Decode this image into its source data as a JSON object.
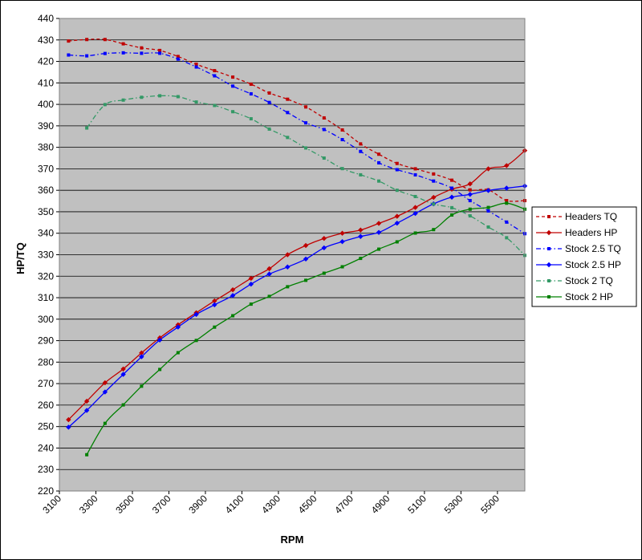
{
  "chart_data": {
    "type": "line",
    "xlabel": "RPM",
    "ylabel": "HP/TQ",
    "xlim": [
      3100,
      5650
    ],
    "ylim": [
      220,
      440
    ],
    "x_ticks": [
      3100,
      3300,
      3500,
      3700,
      3900,
      4100,
      4300,
      4500,
      4700,
      4900,
      5100,
      5300,
      5500
    ],
    "y_ticks": [
      220,
      230,
      240,
      250,
      260,
      270,
      280,
      290,
      300,
      310,
      320,
      330,
      340,
      350,
      360,
      370,
      380,
      390,
      400,
      410,
      420,
      430,
      440
    ],
    "grid": "horizontal",
    "plot_background": "#c0c0c0",
    "legend_position": "right",
    "series": [
      {
        "name": "Headers TQ",
        "color": "#c00000",
        "dash": "dashed",
        "marker": "square",
        "x": [
          3150,
          3250,
          3350,
          3450,
          3550,
          3650,
          3750,
          3850,
          3950,
          4050,
          4150,
          4250,
          4350,
          4450,
          4550,
          4650,
          4750,
          4850,
          4950,
          5050,
          5150,
          5250,
          5350,
          5450,
          5550,
          5650
        ],
        "y": [
          429.5,
          430.2,
          430.2,
          428.2,
          426.3,
          425.1,
          422.3,
          418.7,
          415.7,
          412.7,
          409.4,
          405.3,
          402.4,
          398.8,
          393.7,
          388.1,
          381.6,
          376.8,
          372.5,
          370.0,
          367.6,
          364.7,
          360.2,
          360.2,
          355.2,
          355.2
        ]
      },
      {
        "name": "Headers HP",
        "color": "#c00000",
        "dash": "solid",
        "marker": "diamond",
        "x": [
          3150,
          3250,
          3350,
          3450,
          3550,
          3650,
          3750,
          3850,
          3950,
          4050,
          4150,
          4250,
          4350,
          4450,
          4550,
          4650,
          4750,
          4850,
          4950,
          5050,
          5150,
          5250,
          5350,
          5450,
          5550,
          5650
        ],
        "y": [
          253.2,
          261.8,
          270.4,
          276.8,
          284.3,
          291.3,
          297.4,
          303.0,
          308.5,
          313.7,
          319.0,
          323.5,
          330.0,
          334.3,
          337.6,
          340.0,
          341.5,
          344.6,
          347.9,
          352.0,
          356.7,
          360.5,
          363.0,
          370.0,
          371.5,
          378.5
        ]
      },
      {
        "name": "Stock 2.5 TQ",
        "color": "#0000ff",
        "dash": "dashdot",
        "marker": "square",
        "x": [
          3150,
          3250,
          3350,
          3450,
          3550,
          3650,
          3750,
          3850,
          3950,
          4050,
          4150,
          4250,
          4350,
          4450,
          4550,
          4650,
          4750,
          4850,
          4950,
          5050,
          5150,
          5250,
          5350,
          5450,
          5550,
          5650
        ],
        "y": [
          423.0,
          422.6,
          423.7,
          424.0,
          423.8,
          423.8,
          421.1,
          417.4,
          413.3,
          408.5,
          404.9,
          400.9,
          396.2,
          391.4,
          388.3,
          383.6,
          378.1,
          372.8,
          369.6,
          367.2,
          364.3,
          361.0,
          355.2,
          350.4,
          345.2,
          339.8
        ]
      },
      {
        "name": "Stock 2.5 HP",
        "color": "#0000ff",
        "dash": "solid",
        "marker": "diamond",
        "x": [
          3150,
          3250,
          3350,
          3450,
          3550,
          3650,
          3750,
          3850,
          3950,
          4050,
          4150,
          4250,
          4350,
          4450,
          4550,
          4650,
          4750,
          4850,
          4950,
          5050,
          5150,
          5250,
          5350,
          5450,
          5550,
          5650
        ],
        "y": [
          249.7,
          257.5,
          266.1,
          274.3,
          282.5,
          290.3,
          296.3,
          302.2,
          306.7,
          311.0,
          316.3,
          321.0,
          324.3,
          328.0,
          333.2,
          336.1,
          338.5,
          340.4,
          344.7,
          349.2,
          353.7,
          356.8,
          358.1,
          359.9,
          361.0,
          362.0
        ]
      },
      {
        "name": "Stock 2 TQ",
        "color": "#339966",
        "dash": "dashdot",
        "marker": "square",
        "x": [
          3250,
          3350,
          3450,
          3550,
          3650,
          3750,
          3850,
          3950,
          4050,
          4150,
          4250,
          4350,
          4450,
          4550,
          4650,
          4750,
          4850,
          4950,
          5050,
          5150,
          5250,
          5350,
          5450,
          5550,
          5650
        ],
        "y": [
          389.0,
          399.9,
          402.0,
          403.3,
          404.0,
          403.6,
          401.1,
          399.5,
          396.6,
          393.3,
          388.5,
          384.6,
          379.7,
          375.0,
          370.1,
          367.2,
          364.3,
          360.0,
          357.1,
          353.6,
          351.9,
          348.1,
          342.9,
          337.9,
          329.7
        ]
      },
      {
        "name": "Stock 2 HP",
        "color": "#008000",
        "dash": "solid",
        "marker": "square",
        "x": [
          3250,
          3350,
          3450,
          3550,
          3650,
          3750,
          3850,
          3950,
          4050,
          4150,
          4250,
          4350,
          4450,
          4550,
          4650,
          4750,
          4850,
          4950,
          5050,
          5150,
          5250,
          5350,
          5450,
          5550,
          5650
        ],
        "y": [
          236.9,
          251.5,
          260.1,
          268.8,
          276.6,
          284.4,
          290.1,
          296.3,
          301.6,
          307.0,
          310.6,
          315.1,
          318.1,
          321.4,
          324.4,
          328.3,
          332.6,
          336.0,
          340.1,
          341.7,
          348.5,
          351.2,
          352.0,
          354.0,
          351.2
        ]
      }
    ]
  }
}
